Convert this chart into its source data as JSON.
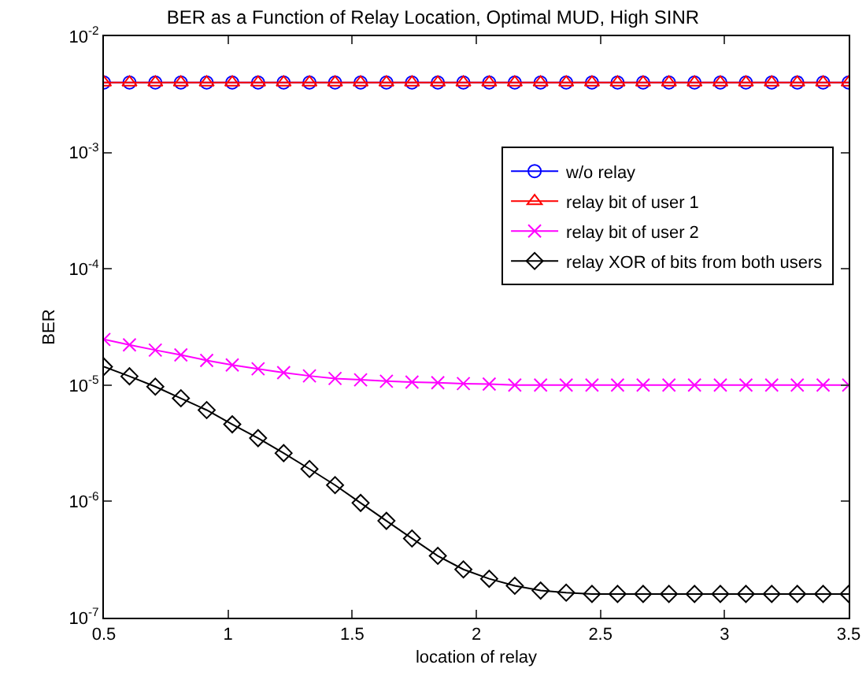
{
  "chart_data": {
    "type": "line",
    "title": "BER as a Function of Relay Location, Optimal MUD, High SINR",
    "xlabel": "location of relay",
    "ylabel": "BER",
    "x": [
      0.5,
      0.603,
      0.707,
      0.81,
      0.914,
      1.017,
      1.121,
      1.224,
      1.328,
      1.431,
      1.534,
      1.638,
      1.741,
      1.845,
      1.948,
      2.052,
      2.155,
      2.259,
      2.362,
      2.466,
      2.569,
      2.672,
      2.776,
      2.879,
      2.983,
      3.086,
      3.19,
      3.293,
      3.397,
      3.5
    ],
    "series": [
      {
        "name": "w/o relay",
        "color": "#0000ff",
        "marker": "circle",
        "values": [
          0.004,
          0.004,
          0.004,
          0.004,
          0.004,
          0.004,
          0.004,
          0.004,
          0.004,
          0.004,
          0.004,
          0.004,
          0.004,
          0.004,
          0.004,
          0.004,
          0.004,
          0.004,
          0.004,
          0.004,
          0.004,
          0.004,
          0.004,
          0.004,
          0.004,
          0.004,
          0.004,
          0.004,
          0.004,
          0.004
        ]
      },
      {
        "name": "relay bit of user 1",
        "color": "#ff0000",
        "marker": "triangle",
        "values": [
          0.004,
          0.004,
          0.004,
          0.004,
          0.004,
          0.004,
          0.004,
          0.004,
          0.004,
          0.004,
          0.004,
          0.004,
          0.004,
          0.004,
          0.004,
          0.004,
          0.004,
          0.004,
          0.004,
          0.004,
          0.004,
          0.004,
          0.004,
          0.004,
          0.004,
          0.004,
          0.004,
          0.004,
          0.004,
          0.004
        ]
      },
      {
        "name": "relay bit of user 2",
        "color": "#ff00ff",
        "marker": "cross",
        "values": [
          2.47e-05,
          2.22e-05,
          2e-05,
          1.82e-05,
          1.63e-05,
          1.49e-05,
          1.38e-05,
          1.28e-05,
          1.2e-05,
          1.14e-05,
          1.11e-05,
          1.08e-05,
          1.06e-05,
          1.05e-05,
          1.03e-05,
          1.02e-05,
          1e-05,
          1e-05,
          1e-05,
          1e-05,
          1e-05,
          1e-05,
          1e-05,
          1e-05,
          1e-05,
          1e-05,
          1e-05,
          1e-05,
          1e-05,
          1e-05
        ]
      },
      {
        "name": "relay XOR of bits from both users",
        "color": "#000000",
        "marker": "diamond",
        "values": [
          1.44e-05,
          1.19e-05,
          9.7e-06,
          7.7e-06,
          6.1e-06,
          4.6e-06,
          3.5e-06,
          2.6e-06,
          1.9e-06,
          1.38e-06,
          9.7e-07,
          6.8e-07,
          4.8e-07,
          3.4e-07,
          2.6e-07,
          2.16e-07,
          1.88e-07,
          1.71e-07,
          1.64e-07,
          1.6e-07,
          1.6e-07,
          1.6e-07,
          1.6e-07,
          1.6e-07,
          1.6e-07,
          1.6e-07,
          1.6e-07,
          1.6e-07,
          1.6e-07,
          1.6e-07
        ]
      }
    ],
    "xlim": [
      0.5,
      3.5
    ],
    "xticks": [
      0.5,
      1,
      1.5,
      2,
      2.5,
      3,
      3.5
    ],
    "ylim": [
      1e-07,
      0.01
    ],
    "yticks": [
      {
        "value": 1e-07,
        "label": "10$^{-7}$"
      },
      {
        "value": 1e-06,
        "label": "10$^{-6}$"
      },
      {
        "value": 1e-05,
        "label": "10$^{-5}$"
      },
      {
        "value": 0.0001,
        "label": "10$^{-4}$"
      },
      {
        "value": 0.001,
        "label": "10$^{-3}$"
      },
      {
        "value": 0.01,
        "label": "10$^{-2}$"
      }
    ],
    "log": "y",
    "grid": false,
    "legend": "top right",
    "line_style": "solid"
  }
}
